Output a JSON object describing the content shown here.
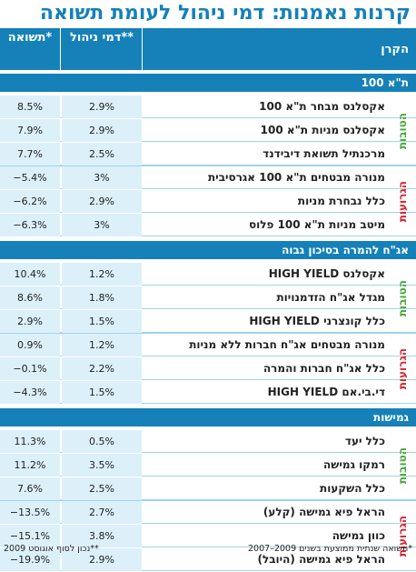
{
  "title": "קרנות נאמנות: דמי ניהול לעומת תשואה",
  "headers": {
    "fund": "הקרן",
    "fee": "דמי ניהול**",
    "return": "תשואה*"
  },
  "colors": {
    "header_bg": "#1581b8",
    "cell_bg": "#dcf0fa",
    "best_label": "#4aa83a",
    "worst_label": "#d8232a"
  },
  "chart_data": {
    "type": "table",
    "title": "קרנות נאמנות: דמי ניהול לעומת תשואה",
    "columns": [
      "הקרן",
      "דמי ניהול**",
      "תשואה*"
    ],
    "sections": [
      {
        "name": "ת\"א 100",
        "groups": [
          {
            "label": "הטובות",
            "rows": [
              {
                "fund": "אקסלנס מבחר ת\"א 100",
                "fee": "2.9%",
                "return": "8.5%"
              },
              {
                "fund": "אקסלנס מניות ת\"א 100",
                "fee": "2.9%",
                "return": "7.9%"
              },
              {
                "fund": "מרכנתיל תשואת דיבידנד",
                "fee": "2.5%",
                "return": "7.7%"
              }
            ]
          },
          {
            "label": "הגרועות",
            "rows": [
              {
                "fund": "מנורה מבטחים ת\"א 100 אגרסיבית",
                "fee": "3%",
                "return": "‎−5.4%"
              },
              {
                "fund": "כלל נבחרת מניות",
                "fee": "2.9%",
                "return": "‎−6.2%"
              },
              {
                "fund": "מיטב מניות ת\"א 100 פלוס",
                "fee": "3%",
                "return": "‎−6.3%"
              }
            ]
          }
        ]
      },
      {
        "name": "אג\"ח להמרה בסיכון גבוה",
        "groups": [
          {
            "label": "הטובות",
            "rows": [
              {
                "fund": "אקסלנס HIGH YIELD",
                "fee": "1.2%",
                "return": "10.4%"
              },
              {
                "fund": "מגדל אג\"ח הזדמנויות",
                "fee": "1.8%",
                "return": "8.6%"
              },
              {
                "fund": "כלל קונצרני HIGH YIELD",
                "fee": "1.5%",
                "return": "2.9%"
              }
            ]
          },
          {
            "label": "הגרועות",
            "rows": [
              {
                "fund": "מנורה מבטחים אג\"ח חברות ללא מניות",
                "fee": "1.2%",
                "return": "0.9%"
              },
              {
                "fund": "כלל אג\"ח חברות והמרה",
                "fee": "2.2%",
                "return": "‎−0.1%"
              },
              {
                "fund": "די.בי.אם HIGH YIELD",
                "fee": "1.5%",
                "return": "‎−4.3%"
              }
            ]
          }
        ]
      },
      {
        "name": "גמישות",
        "groups": [
          {
            "label": "הטובות",
            "rows": [
              {
                "fund": "כלל יעד",
                "fee": "0.5%",
                "return": "11.3%"
              },
              {
                "fund": "רמקו גמישה",
                "fee": "3.5%",
                "return": "11.2%"
              },
              {
                "fund": "כלל השקעות",
                "fee": "2.5%",
                "return": "7.6%"
              }
            ]
          },
          {
            "label": "הגרועות",
            "rows": [
              {
                "fund": "הראל פיא גמישה (קלע)",
                "fee": "2.7%",
                "return": "‎−13.5%"
              },
              {
                "fund": "כוון גמישה",
                "fee": "3.8%",
                "return": "‎−15.1%"
              },
              {
                "fund": "הראל פיא גמישה (היובל)",
                "fee": "2.9%",
                "return": "‎−19.9%"
              }
            ]
          }
        ]
      }
    ]
  },
  "footer": {
    "note1": "*תשואה שנתית ממוצעת בשנים 2009–2007",
    "note2": "**נכון לסוף אוגוסט 2009"
  }
}
